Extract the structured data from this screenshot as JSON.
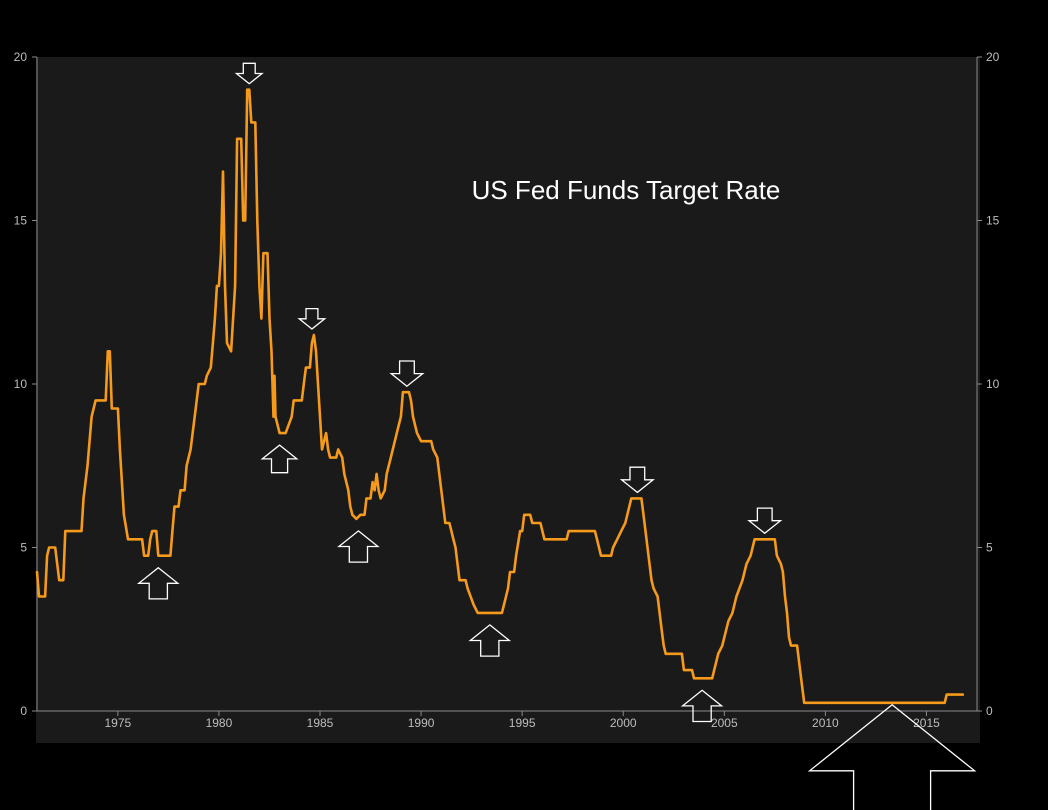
{
  "colors": {
    "background": "#000000",
    "plot_background": "#1b1a1b",
    "line": "#f59a1b",
    "arrow": "#ffffff",
    "axis": "#8a8a8a",
    "tick_text": "#bdbdbd",
    "title": "#ffffff"
  },
  "chart_data": {
    "type": "line",
    "title": "US Fed Funds Target Rate",
    "xlabel": "",
    "ylabel": "",
    "xlim": [
      1971.0,
      2017.5
    ],
    "ylim": [
      0,
      20
    ],
    "x_ticks": [
      1975,
      1980,
      1985,
      1990,
      1995,
      2000,
      2005,
      2010,
      2015
    ],
    "y_ticks": [
      0,
      5,
      10,
      15,
      20
    ],
    "y_axis_sides": [
      "left",
      "right"
    ],
    "grid": false,
    "legend": "none",
    "series": [
      {
        "values": [
          [
            1971.0,
            4.25
          ],
          [
            1971.1,
            3.5
          ],
          [
            1971.4,
            3.5
          ],
          [
            1971.5,
            4.75
          ],
          [
            1971.6,
            5.0
          ],
          [
            1971.9,
            5.0
          ],
          [
            1972.0,
            4.5
          ],
          [
            1972.1,
            4.0
          ],
          [
            1972.3,
            4.0
          ],
          [
            1972.4,
            5.5
          ],
          [
            1972.8,
            5.5
          ],
          [
            1973.2,
            5.5
          ],
          [
            1973.3,
            6.5
          ],
          [
            1973.5,
            7.5
          ],
          [
            1973.7,
            9.0
          ],
          [
            1973.9,
            9.5
          ],
          [
            1974.2,
            9.5
          ],
          [
            1974.4,
            9.5
          ],
          [
            1974.5,
            11.0
          ],
          [
            1974.6,
            11.0
          ],
          [
            1974.7,
            9.25
          ],
          [
            1975.0,
            9.25
          ],
          [
            1975.1,
            8.0
          ],
          [
            1975.3,
            6.0
          ],
          [
            1975.5,
            5.25
          ],
          [
            1975.8,
            5.25
          ],
          [
            1976.0,
            5.25
          ],
          [
            1976.2,
            5.25
          ],
          [
            1976.3,
            4.75
          ],
          [
            1976.5,
            4.75
          ],
          [
            1976.6,
            5.25
          ],
          [
            1976.7,
            5.5
          ],
          [
            1976.9,
            5.5
          ],
          [
            1977.0,
            4.75
          ],
          [
            1977.3,
            4.75
          ],
          [
            1977.6,
            4.75
          ],
          [
            1977.7,
            5.5
          ],
          [
            1977.8,
            6.25
          ],
          [
            1978.0,
            6.25
          ],
          [
            1978.1,
            6.75
          ],
          [
            1978.3,
            6.75
          ],
          [
            1978.4,
            7.5
          ],
          [
            1978.6,
            8.0
          ],
          [
            1978.8,
            9.0
          ],
          [
            1979.0,
            10.0
          ],
          [
            1979.3,
            10.0
          ],
          [
            1979.4,
            10.25
          ],
          [
            1979.6,
            10.5
          ],
          [
            1979.7,
            11.25
          ],
          [
            1979.8,
            12.0
          ],
          [
            1979.9,
            13.0
          ],
          [
            1980.0,
            13.0
          ],
          [
            1980.1,
            14.0
          ],
          [
            1980.2,
            16.5
          ],
          [
            1980.3,
            13.0
          ],
          [
            1980.4,
            11.25
          ],
          [
            1980.6,
            11.0
          ],
          [
            1980.8,
            13.0
          ],
          [
            1980.9,
            17.5
          ],
          [
            1981.1,
            17.5
          ],
          [
            1981.2,
            15.0
          ],
          [
            1981.3,
            15.0
          ],
          [
            1981.4,
            19.0
          ],
          [
            1981.5,
            19.0
          ],
          [
            1981.6,
            18.0
          ],
          [
            1981.8,
            18.0
          ],
          [
            1981.9,
            15.0
          ],
          [
            1982.0,
            13.0
          ],
          [
            1982.1,
            12.0
          ],
          [
            1982.2,
            14.0
          ],
          [
            1982.4,
            14.0
          ],
          [
            1982.5,
            12.0
          ],
          [
            1982.6,
            11.0
          ],
          [
            1982.7,
            9.0
          ],
          [
            1982.75,
            10.25
          ],
          [
            1982.8,
            9.0
          ],
          [
            1983.0,
            8.5
          ],
          [
            1983.3,
            8.5
          ],
          [
            1983.6,
            9.0
          ],
          [
            1983.7,
            9.5
          ],
          [
            1984.1,
            9.5
          ],
          [
            1984.2,
            10.0
          ],
          [
            1984.3,
            10.5
          ],
          [
            1984.5,
            10.5
          ],
          [
            1984.6,
            11.25
          ],
          [
            1984.7,
            11.5
          ],
          [
            1984.8,
            11.0
          ],
          [
            1984.9,
            10.0
          ],
          [
            1985.0,
            9.0
          ],
          [
            1985.1,
            8.0
          ],
          [
            1985.3,
            8.5
          ],
          [
            1985.4,
            8.0
          ],
          [
            1985.5,
            7.75
          ],
          [
            1985.8,
            7.75
          ],
          [
            1985.9,
            8.0
          ],
          [
            1986.1,
            7.75
          ],
          [
            1986.2,
            7.25
          ],
          [
            1986.4,
            6.75
          ],
          [
            1986.5,
            6.25
          ],
          [
            1986.6,
            6.0
          ],
          [
            1986.8,
            5.875
          ],
          [
            1987.0,
            6.0
          ],
          [
            1987.2,
            6.0
          ],
          [
            1987.3,
            6.5
          ],
          [
            1987.5,
            6.5
          ],
          [
            1987.6,
            7.0
          ],
          [
            1987.7,
            6.75
          ],
          [
            1987.8,
            7.25
          ],
          [
            1987.9,
            6.75
          ],
          [
            1988.0,
            6.5
          ],
          [
            1988.2,
            6.75
          ],
          [
            1988.3,
            7.25
          ],
          [
            1988.5,
            7.75
          ],
          [
            1988.6,
            8.0
          ],
          [
            1988.8,
            8.5
          ],
          [
            1988.9,
            8.75
          ],
          [
            1989.0,
            9.0
          ],
          [
            1989.1,
            9.75
          ],
          [
            1989.4,
            9.75
          ],
          [
            1989.5,
            9.5
          ],
          [
            1989.6,
            9.0
          ],
          [
            1989.8,
            8.5
          ],
          [
            1990.0,
            8.25
          ],
          [
            1990.3,
            8.25
          ],
          [
            1990.5,
            8.25
          ],
          [
            1990.6,
            8.0
          ],
          [
            1990.8,
            7.75
          ],
          [
            1990.9,
            7.25
          ],
          [
            1991.0,
            6.75
          ],
          [
            1991.1,
            6.25
          ],
          [
            1991.2,
            5.75
          ],
          [
            1991.4,
            5.75
          ],
          [
            1991.5,
            5.5
          ],
          [
            1991.6,
            5.25
          ],
          [
            1991.7,
            5.0
          ],
          [
            1991.8,
            4.5
          ],
          [
            1991.9,
            4.0
          ],
          [
            1992.2,
            4.0
          ],
          [
            1992.3,
            3.75
          ],
          [
            1992.6,
            3.25
          ],
          [
            1992.8,
            3.0
          ],
          [
            1993.0,
            3.0
          ],
          [
            1993.5,
            3.0
          ],
          [
            1994.0,
            3.0
          ],
          [
            1994.1,
            3.25
          ],
          [
            1994.3,
            3.75
          ],
          [
            1994.4,
            4.25
          ],
          [
            1994.6,
            4.25
          ],
          [
            1994.7,
            4.75
          ],
          [
            1994.9,
            5.5
          ],
          [
            1995.0,
            5.5
          ],
          [
            1995.1,
            6.0
          ],
          [
            1995.4,
            6.0
          ],
          [
            1995.5,
            5.75
          ],
          [
            1995.9,
            5.75
          ],
          [
            1996.0,
            5.5
          ],
          [
            1996.1,
            5.25
          ],
          [
            1997.2,
            5.25
          ],
          [
            1997.3,
            5.5
          ],
          [
            1998.6,
            5.5
          ],
          [
            1998.7,
            5.25
          ],
          [
            1998.8,
            5.0
          ],
          [
            1998.9,
            4.75
          ],
          [
            1999.4,
            4.75
          ],
          [
            1999.5,
            5.0
          ],
          [
            1999.7,
            5.25
          ],
          [
            1999.9,
            5.5
          ],
          [
            2000.1,
            5.75
          ],
          [
            2000.2,
            6.0
          ],
          [
            2000.4,
            6.5
          ],
          [
            2000.9,
            6.5
          ],
          [
            2001.0,
            6.0
          ],
          [
            2001.1,
            5.5
          ],
          [
            2001.2,
            5.0
          ],
          [
            2001.3,
            4.5
          ],
          [
            2001.4,
            4.0
          ],
          [
            2001.5,
            3.75
          ],
          [
            2001.7,
            3.5
          ],
          [
            2001.8,
            3.0
          ],
          [
            2001.9,
            2.5
          ],
          [
            2002.0,
            2.0
          ],
          [
            2002.1,
            1.75
          ],
          [
            2002.9,
            1.75
          ],
          [
            2003.0,
            1.25
          ],
          [
            2003.4,
            1.25
          ],
          [
            2003.5,
            1.0
          ],
          [
            2004.4,
            1.0
          ],
          [
            2004.5,
            1.25
          ],
          [
            2004.6,
            1.5
          ],
          [
            2004.7,
            1.75
          ],
          [
            2004.9,
            2.0
          ],
          [
            2005.0,
            2.25
          ],
          [
            2005.2,
            2.75
          ],
          [
            2005.4,
            3.0
          ],
          [
            2005.6,
            3.5
          ],
          [
            2005.9,
            4.0
          ],
          [
            2006.1,
            4.5
          ],
          [
            2006.3,
            4.75
          ],
          [
            2006.4,
            5.0
          ],
          [
            2006.5,
            5.25
          ],
          [
            2007.0,
            5.25
          ],
          [
            2007.5,
            5.25
          ],
          [
            2007.6,
            4.75
          ],
          [
            2007.8,
            4.5
          ],
          [
            2007.9,
            4.25
          ],
          [
            2008.0,
            3.5
          ],
          [
            2008.1,
            3.0
          ],
          [
            2008.2,
            2.25
          ],
          [
            2008.3,
            2.0
          ],
          [
            2008.6,
            2.0
          ],
          [
            2008.7,
            1.5
          ],
          [
            2008.8,
            1.0
          ],
          [
            2008.95,
            0.25
          ],
          [
            2010.0,
            0.25
          ],
          [
            2012.0,
            0.25
          ],
          [
            2014.0,
            0.25
          ],
          [
            2015.9,
            0.25
          ],
          [
            2016.0,
            0.5
          ],
          [
            2016.8,
            0.5
          ]
        ]
      }
    ],
    "annotations": [
      {
        "type": "down-arrow",
        "x": 1981.5,
        "y": 19.0
      },
      {
        "type": "down-arrow",
        "x": 1984.6,
        "y": 11.5
      },
      {
        "type": "down-arrow",
        "x": 1989.3,
        "y": 9.75
      },
      {
        "type": "down-arrow",
        "x": 2000.7,
        "y": 6.5
      },
      {
        "type": "down-arrow",
        "x": 2007.0,
        "y": 5.25
      },
      {
        "type": "up-arrow",
        "x": 1977.0,
        "y": 4.75
      },
      {
        "type": "up-arrow",
        "x": 1983.0,
        "y": 8.5
      },
      {
        "type": "up-arrow",
        "x": 1986.9,
        "y": 5.875
      },
      {
        "type": "up-arrow",
        "x": 1993.4,
        "y": 3.0
      },
      {
        "type": "up-arrow",
        "x": 2003.9,
        "y": 1.0
      },
      {
        "type": "up-arrow",
        "x": 2013.3,
        "y": 0.25
      }
    ]
  }
}
